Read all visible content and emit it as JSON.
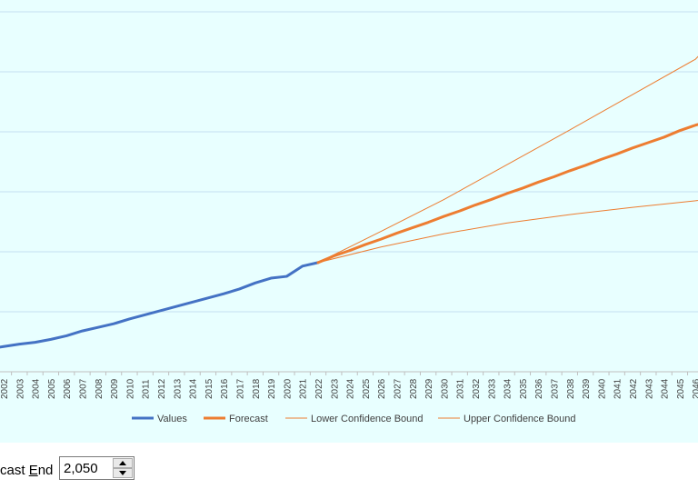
{
  "chart_data": {
    "type": "line",
    "x": [
      2002,
      2003,
      2004,
      2005,
      2006,
      2007,
      2008,
      2009,
      2010,
      2011,
      2012,
      2013,
      2014,
      2015,
      2016,
      2017,
      2018,
      2019,
      2020,
      2021,
      2022,
      2023,
      2024,
      2025,
      2026,
      2027,
      2028,
      2029,
      2030,
      2031,
      2032,
      2033,
      2034,
      2035,
      2036,
      2037,
      2038,
      2039,
      2040,
      2041,
      2042,
      2043,
      2044,
      2045,
      2046
    ],
    "ylim": [
      0,
      6.5
    ],
    "grid": true,
    "legend_position": "bottom",
    "series": [
      {
        "name": "Values",
        "color": "#4472c4",
        "x": [
          2001,
          2002,
          2003,
          2004,
          2005,
          2006,
          2007,
          2008,
          2009,
          2010,
          2011,
          2012,
          2013,
          2014,
          2015,
          2016,
          2017,
          2018,
          2019,
          2020,
          2021,
          2022
        ],
        "values": [
          0.38,
          0.42,
          0.46,
          0.49,
          0.54,
          0.6,
          0.68,
          0.74,
          0.8,
          0.88,
          0.95,
          1.02,
          1.09,
          1.16,
          1.23,
          1.3,
          1.38,
          1.48,
          1.56,
          1.59,
          1.76,
          1.82
        ]
      },
      {
        "name": "Forecast",
        "color": "#ed7d31",
        "x": [
          2022,
          2023,
          2024,
          2025,
          2026,
          2027,
          2028,
          2029,
          2030,
          2031,
          2032,
          2033,
          2034,
          2035,
          2036,
          2037,
          2038,
          2039,
          2040,
          2041,
          2042,
          2043,
          2044,
          2045,
          2046,
          2047
        ],
        "values": [
          1.82,
          1.93,
          2.02,
          2.12,
          2.21,
          2.31,
          2.4,
          2.49,
          2.59,
          2.68,
          2.78,
          2.87,
          2.97,
          3.06,
          3.16,
          3.25,
          3.35,
          3.44,
          3.54,
          3.63,
          3.73,
          3.82,
          3.91,
          4.02,
          4.11,
          4.19
        ]
      },
      {
        "name": "Lower Confidence Bound",
        "color": "#ed7d31",
        "x": [
          2022,
          2026,
          2030,
          2034,
          2038,
          2042,
          2046,
          2047
        ],
        "values": [
          1.82,
          2.08,
          2.3,
          2.48,
          2.62,
          2.74,
          2.85,
          2.89
        ]
      },
      {
        "name": "Upper Confidence Bound",
        "color": "#ed7d31",
        "x": [
          2022,
          2026,
          2030,
          2034,
          2038,
          2042,
          2046,
          2047
        ],
        "values": [
          1.82,
          2.34,
          2.87,
          3.45,
          4.03,
          4.62,
          5.21,
          5.48
        ]
      }
    ]
  },
  "controls": {
    "forecast_end_label_pre": "cast ",
    "forecast_end_label_u": "E",
    "forecast_end_label_post": "nd",
    "forecast_end_value": "2,050"
  }
}
